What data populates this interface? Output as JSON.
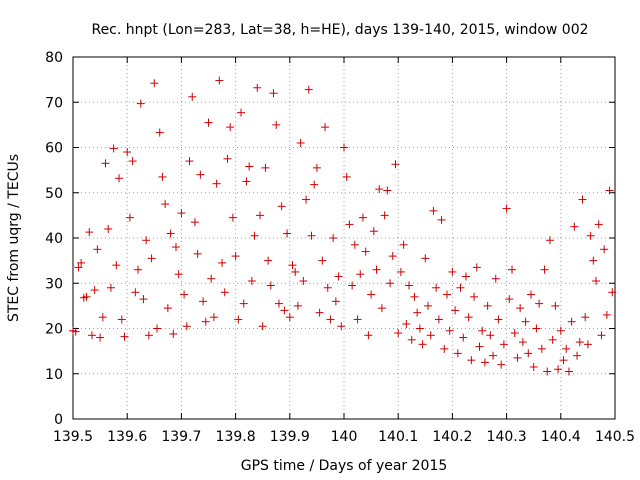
{
  "chart_data": {
    "type": "scatter",
    "title": "Rec. hnpt (Lon=283, Lat=38, h=HE), days 139-140, 2015, window 002",
    "xlabel": "GPS time / Days of year 2015",
    "ylabel": "STEC from uqrg / TECUs",
    "xlim": [
      139.5,
      140.5
    ],
    "ylim": [
      0,
      80
    ],
    "xticks": [
      139.5,
      139.6,
      139.7,
      139.8,
      139.9,
      140.0,
      140.1,
      140.2,
      140.3,
      140.4,
      140.5
    ],
    "xtick_labels": [
      "139.5",
      "139.6",
      "139.7",
      "139.8",
      "139.9",
      "140",
      "140.1",
      "140.2",
      "140.3",
      "140.4",
      "140.5"
    ],
    "yticks": [
      0,
      10,
      20,
      30,
      40,
      50,
      60,
      70,
      80
    ],
    "ytick_labels": [
      "0",
      "10",
      "20",
      "30",
      "40",
      "50",
      "60",
      "70",
      "80"
    ],
    "grid": true,
    "marker_color": "#d00000",
    "marker": "plus",
    "points": [
      [
        139.5,
        19.5
      ],
      [
        139.505,
        19.3
      ],
      [
        139.51,
        33.5
      ],
      [
        139.515,
        34.5
      ],
      [
        139.52,
        26.8
      ],
      [
        139.525,
        27.0
      ],
      [
        139.53,
        41.3
      ],
      [
        139.535,
        18.5
      ],
      [
        139.54,
        28.5
      ],
      [
        139.545,
        37.5
      ],
      [
        139.55,
        18.0
      ],
      [
        139.555,
        22.5
      ],
      [
        139.56,
        56.5
      ],
      [
        139.565,
        42.0
      ],
      [
        139.57,
        29.0
      ],
      [
        139.575,
        59.8
      ],
      [
        139.58,
        34.0
      ],
      [
        139.585,
        53.2
      ],
      [
        139.59,
        22.0
      ],
      [
        139.595,
        18.2
      ],
      [
        139.6,
        59.0
      ],
      [
        139.605,
        44.5
      ],
      [
        139.61,
        57.0
      ],
      [
        139.615,
        28.0
      ],
      [
        139.62,
        33.0
      ],
      [
        139.625,
        69.7
      ],
      [
        139.63,
        26.5
      ],
      [
        139.635,
        39.5
      ],
      [
        139.64,
        18.5
      ],
      [
        139.645,
        35.5
      ],
      [
        139.65,
        74.2
      ],
      [
        139.655,
        20.0
      ],
      [
        139.66,
        63.3
      ],
      [
        139.665,
        53.5
      ],
      [
        139.67,
        47.5
      ],
      [
        139.675,
        24.5
      ],
      [
        139.68,
        41.0
      ],
      [
        139.685,
        18.8
      ],
      [
        139.69,
        38.0
      ],
      [
        139.695,
        32.0
      ],
      [
        139.7,
        45.5
      ],
      [
        139.705,
        27.5
      ],
      [
        139.71,
        20.5
      ],
      [
        139.715,
        57.0
      ],
      [
        139.72,
        71.2
      ],
      [
        139.725,
        43.5
      ],
      [
        139.73,
        36.5
      ],
      [
        139.735,
        54.0
      ],
      [
        139.74,
        26.0
      ],
      [
        139.745,
        21.5
      ],
      [
        139.75,
        65.5
      ],
      [
        139.755,
        31.0
      ],
      [
        139.76,
        22.5
      ],
      [
        139.765,
        52.0
      ],
      [
        139.77,
        74.8
      ],
      [
        139.775,
        34.5
      ],
      [
        139.78,
        28.0
      ],
      [
        139.785,
        57.5
      ],
      [
        139.79,
        64.5
      ],
      [
        139.795,
        44.5
      ],
      [
        139.8,
        36.0
      ],
      [
        139.805,
        22.0
      ],
      [
        139.81,
        67.7
      ],
      [
        139.815,
        25.5
      ],
      [
        139.82,
        52.5
      ],
      [
        139.825,
        55.8
      ],
      [
        139.83,
        30.5
      ],
      [
        139.835,
        40.5
      ],
      [
        139.84,
        73.2
      ],
      [
        139.845,
        45.0
      ],
      [
        139.85,
        20.5
      ],
      [
        139.855,
        55.5
      ],
      [
        139.86,
        35.0
      ],
      [
        139.865,
        29.5
      ],
      [
        139.87,
        72.0
      ],
      [
        139.875,
        65.0
      ],
      [
        139.88,
        25.5
      ],
      [
        139.885,
        47.0
      ],
      [
        139.89,
        24.0
      ],
      [
        139.895,
        41.0
      ],
      [
        139.9,
        22.5
      ],
      [
        139.905,
        34.0
      ],
      [
        139.91,
        32.5
      ],
      [
        139.915,
        25.0
      ],
      [
        139.92,
        61.0
      ],
      [
        139.925,
        30.5
      ],
      [
        139.93,
        48.5
      ],
      [
        139.935,
        72.8
      ],
      [
        139.94,
        40.5
      ],
      [
        139.945,
        51.8
      ],
      [
        139.95,
        55.5
      ],
      [
        139.955,
        23.5
      ],
      [
        139.96,
        35.0
      ],
      [
        139.965,
        64.5
      ],
      [
        139.97,
        29.0
      ],
      [
        139.975,
        22.0
      ],
      [
        139.98,
        40.0
      ],
      [
        139.985,
        26.0
      ],
      [
        139.99,
        31.5
      ],
      [
        139.995,
        20.5
      ],
      [
        140.0,
        60.0
      ],
      [
        140.005,
        53.5
      ],
      [
        140.01,
        43.0
      ],
      [
        140.015,
        29.5
      ],
      [
        140.02,
        38.5
      ],
      [
        140.025,
        22.0
      ],
      [
        140.03,
        32.0
      ],
      [
        140.035,
        44.5
      ],
      [
        140.04,
        37.0
      ],
      [
        140.045,
        18.5
      ],
      [
        140.05,
        27.5
      ],
      [
        140.055,
        41.5
      ],
      [
        140.06,
        33.0
      ],
      [
        140.065,
        50.8
      ],
      [
        140.07,
        24.5
      ],
      [
        140.075,
        45.0
      ],
      [
        140.08,
        50.5
      ],
      [
        140.085,
        30.0
      ],
      [
        140.09,
        36.0
      ],
      [
        140.095,
        56.3
      ],
      [
        140.1,
        19.0
      ],
      [
        140.105,
        32.5
      ],
      [
        140.11,
        38.5
      ],
      [
        140.115,
        21.0
      ],
      [
        140.12,
        29.5
      ],
      [
        140.125,
        17.5
      ],
      [
        140.13,
        27.0
      ],
      [
        140.135,
        23.5
      ],
      [
        140.14,
        20.0
      ],
      [
        140.145,
        16.5
      ],
      [
        140.15,
        35.5
      ],
      [
        140.155,
        25.0
      ],
      [
        140.16,
        18.5
      ],
      [
        140.165,
        46.0
      ],
      [
        140.17,
        29.0
      ],
      [
        140.175,
        22.0
      ],
      [
        140.18,
        44.0
      ],
      [
        140.185,
        15.5
      ],
      [
        140.19,
        27.5
      ],
      [
        140.195,
        19.5
      ],
      [
        140.2,
        32.5
      ],
      [
        140.205,
        24.0
      ],
      [
        140.21,
        14.5
      ],
      [
        140.215,
        29.0
      ],
      [
        140.22,
        18.0
      ],
      [
        140.225,
        31.5
      ],
      [
        140.23,
        22.5
      ],
      [
        140.235,
        13.0
      ],
      [
        140.24,
        27.0
      ],
      [
        140.245,
        33.5
      ],
      [
        140.25,
        16.0
      ],
      [
        140.255,
        19.5
      ],
      [
        140.26,
        12.5
      ],
      [
        140.265,
        25.0
      ],
      [
        140.27,
        18.5
      ],
      [
        140.275,
        14.0
      ],
      [
        140.28,
        31.0
      ],
      [
        140.285,
        22.0
      ],
      [
        140.29,
        12.0
      ],
      [
        140.295,
        16.5
      ],
      [
        140.3,
        46.5
      ],
      [
        140.305,
        26.5
      ],
      [
        140.31,
        33.0
      ],
      [
        140.315,
        19.0
      ],
      [
        140.32,
        13.5
      ],
      [
        140.325,
        24.5
      ],
      [
        140.33,
        17.0
      ],
      [
        140.335,
        21.5
      ],
      [
        140.34,
        14.5
      ],
      [
        140.345,
        27.5
      ],
      [
        140.35,
        11.5
      ],
      [
        140.355,
        20.0
      ],
      [
        140.36,
        25.5
      ],
      [
        140.365,
        15.5
      ],
      [
        140.37,
        33.0
      ],
      [
        140.375,
        10.5
      ],
      [
        140.38,
        39.5
      ],
      [
        140.385,
        17.5
      ],
      [
        140.39,
        25.0
      ],
      [
        140.395,
        11.0
      ],
      [
        140.4,
        19.5
      ],
      [
        140.405,
        13.0
      ],
      [
        140.41,
        15.5
      ],
      [
        140.415,
        10.5
      ],
      [
        140.42,
        21.5
      ],
      [
        140.425,
        42.5
      ],
      [
        140.43,
        14.0
      ],
      [
        140.435,
        17.0
      ],
      [
        140.44,
        48.5
      ],
      [
        140.445,
        22.5
      ],
      [
        140.45,
        16.5
      ],
      [
        140.455,
        40.5
      ],
      [
        140.46,
        35.0
      ],
      [
        140.465,
        30.5
      ],
      [
        140.47,
        43.0
      ],
      [
        140.475,
        18.5
      ],
      [
        140.48,
        37.5
      ],
      [
        140.485,
        23.0
      ],
      [
        140.49,
        50.5
      ],
      [
        140.495,
        28.0
      ]
    ]
  }
}
